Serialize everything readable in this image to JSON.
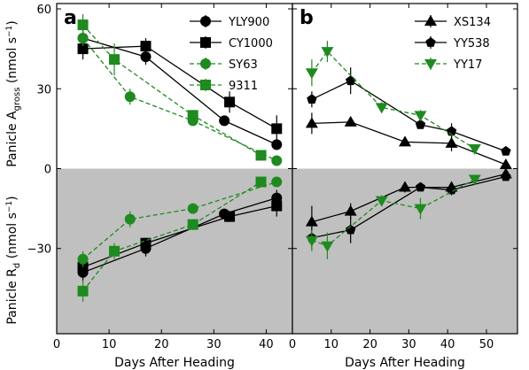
{
  "chart_data": [
    {
      "type": "line",
      "panel_label": "a",
      "xlabel": "Days After Heading",
      "ylabel_top": [
        "Panicle A",
        "gross",
        " (nmol s",
        "−1",
        ")"
      ],
      "ylabel_bottom": [
        "Panicle R",
        "d",
        " (nmol s",
        "−1",
        ")"
      ],
      "xlim": [
        0,
        45
      ],
      "ylim": [
        -62,
        62
      ],
      "xticks": [
        "0",
        "10",
        "20",
        "30",
        "40"
      ],
      "yticks": [
        "60",
        "30",
        "0",
        "−30"
      ],
      "shaded_region": "y < 0 (gray)",
      "legend_position": "top-right",
      "series": [
        {
          "name": "YLY900",
          "color": "#000000",
          "marker": "circle",
          "linestyle": "solid",
          "x_top": [
            5,
            17,
            32,
            42
          ],
          "y_top": [
            49,
            42,
            18,
            9
          ],
          "err_top": [
            4,
            3,
            1.5,
            2
          ],
          "x_bottom": [
            5,
            17,
            32,
            42
          ],
          "y_bottom": [
            -39,
            -30,
            -17,
            -11
          ],
          "err_bottom": [
            3,
            3,
            2,
            3
          ]
        },
        {
          "name": "CY1000",
          "color": "#000000",
          "marker": "square",
          "linestyle": "solid",
          "x_top": [
            5,
            17,
            33,
            42
          ],
          "y_top": [
            45,
            46,
            25,
            15
          ],
          "err_top": [
            4,
            3,
            4,
            5
          ],
          "x_bottom": [
            5,
            17,
            33,
            42
          ],
          "y_bottom": [
            -37,
            -28,
            -18,
            -14
          ],
          "err_bottom": [
            3,
            2,
            2,
            4
          ]
        },
        {
          "name": "SY63",
          "color": "#1f8a1f",
          "marker": "circle",
          "linestyle": "dashed",
          "x_top": [
            5,
            14,
            26,
            42
          ],
          "y_top": [
            49,
            27,
            18,
            3
          ],
          "err_top": [
            3,
            3,
            1.5,
            1
          ],
          "x_bottom": [
            5,
            14,
            26,
            42
          ],
          "y_bottom": [
            -34,
            -19,
            -15,
            -5
          ],
          "err_bottom": [
            3,
            3,
            1.5,
            1
          ]
        },
        {
          "name": "9311",
          "color": "#1f8a1f",
          "marker": "square",
          "linestyle": "dashed",
          "x_top": [
            5,
            11,
            26,
            39
          ],
          "y_top": [
            54,
            41,
            20,
            5
          ],
          "err_top": [
            4,
            6,
            2,
            1
          ],
          "x_bottom": [
            5,
            11,
            26,
            39
          ],
          "y_bottom": [
            -46,
            -31,
            -21,
            -5
          ],
          "err_bottom": [
            4,
            3,
            2,
            1
          ]
        }
      ]
    },
    {
      "type": "line",
      "panel_label": "b",
      "xlabel": "Days After Heading",
      "xlim": [
        0,
        58
      ],
      "ylim": [
        -62,
        62
      ],
      "xticks": [
        "0",
        "10",
        "20",
        "30",
        "40",
        "50"
      ],
      "shaded_region": "y < 0 (gray)",
      "legend_position": "top-right",
      "series": [
        {
          "name": "XS134",
          "color": "#000000",
          "marker": "triangle-up",
          "linestyle": "solid",
          "x_top": [
            5,
            15,
            29,
            41,
            55
          ],
          "y_top": [
            17,
            17.5,
            10,
            9.5,
            1.5
          ],
          "err_top": [
            4,
            1.5,
            1,
            3,
            1
          ],
          "x_bottom": [
            5,
            15,
            29,
            41,
            55
          ],
          "y_bottom": [
            -20,
            -16,
            -7,
            -7,
            -2
          ],
          "err_bottom": [
            6,
            3,
            2,
            2,
            1
          ]
        },
        {
          "name": "YY538",
          "color": "#000000",
          "marker": "pentagon",
          "linestyle": "solid",
          "x_top": [
            5,
            15,
            33,
            41,
            55
          ],
          "y_top": [
            26,
            33,
            16.5,
            14,
            6.5
          ],
          "err_top": [
            3,
            5,
            1.5,
            3,
            1
          ],
          "x_bottom": [
            5,
            15,
            33,
            41,
            55
          ],
          "y_bottom": [
            -26,
            -23,
            -7,
            -8,
            -3
          ],
          "err_bottom": [
            4,
            5,
            1.5,
            2,
            1
          ]
        },
        {
          "name": "YY17",
          "color": "#1f8a1f",
          "marker": "triangle-down",
          "linestyle": "dashed",
          "x_top": [
            5,
            9,
            23,
            33,
            47
          ],
          "y_top": [
            36,
            44,
            23,
            20,
            7.5
          ],
          "err_top": [
            5,
            4,
            2,
            2,
            1
          ],
          "x_bottom": [
            5,
            9,
            23,
            33,
            47
          ],
          "y_bottom": [
            -27,
            -29,
            -12,
            -15,
            -4
          ],
          "err_bottom": [
            4,
            5,
            2,
            4,
            1
          ]
        }
      ]
    }
  ]
}
